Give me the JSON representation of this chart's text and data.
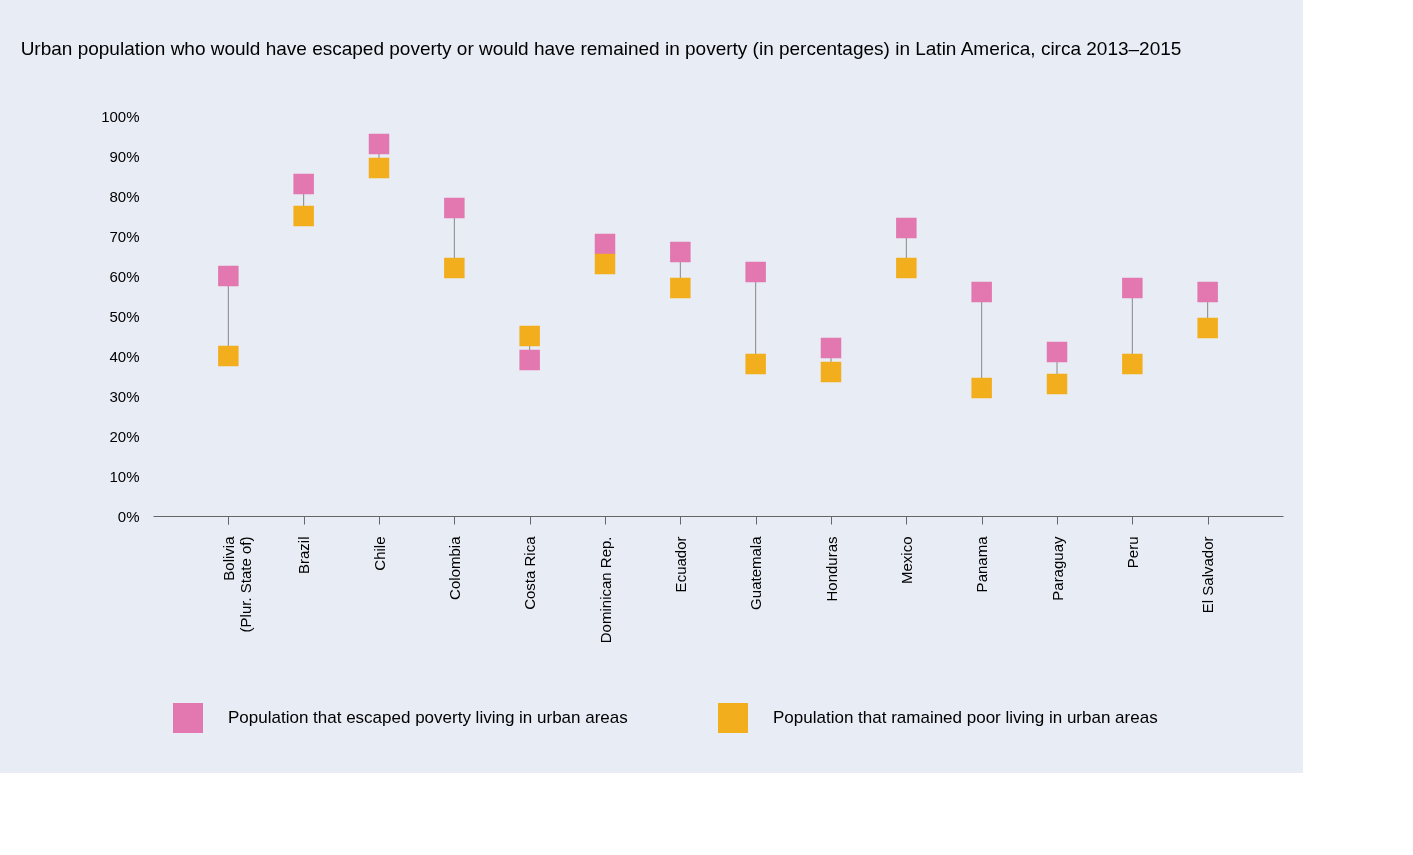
{
  "chart_data": {
    "type": "scatter",
    "title": "Urban population who would have escaped poverty or would have remained in poverty (in percentages) in Latin America, circa 2013–2015",
    "categories": [
      "Bolivia\n(Plur. State of)",
      "Brazil",
      "Chile",
      "Colombia",
      "Costa Rica",
      "Dominican Rep.",
      "Ecuador",
      "Guatemala",
      "Honduras",
      "Mexico",
      "Panama",
      "Paraguay",
      "Peru",
      "El Salvador"
    ],
    "series": [
      {
        "name": "Population that escaped poverty living in urban areas",
        "color": "#e377b0",
        "values": [
          60,
          83,
          93,
          77,
          39,
          68,
          66,
          61,
          42,
          72,
          56,
          41,
          57,
          56
        ]
      },
      {
        "name": "Population that ramained poor living in urban areas",
        "color": "#f2ae1c",
        "values": [
          40,
          75,
          87,
          62,
          45,
          63,
          57,
          38,
          36,
          62,
          32,
          33,
          38,
          47
        ]
      }
    ],
    "ylim": [
      0,
      100
    ],
    "yticks": [
      {
        "value": 0,
        "label": "0%"
      },
      {
        "value": 10,
        "label": "10%"
      },
      {
        "value": 20,
        "label": "20%"
      },
      {
        "value": 30,
        "label": "30%"
      },
      {
        "value": 40,
        "label": "40%"
      },
      {
        "value": 50,
        "label": "50%"
      },
      {
        "value": 60,
        "label": "60%"
      },
      {
        "value": 70,
        "label": "70%"
      },
      {
        "value": 80,
        "label": "80%"
      },
      {
        "value": 90,
        "label": "90%"
      },
      {
        "value": 100,
        "label": "100%"
      }
    ],
    "marker": "square",
    "grid": false,
    "legend": "bottom"
  }
}
